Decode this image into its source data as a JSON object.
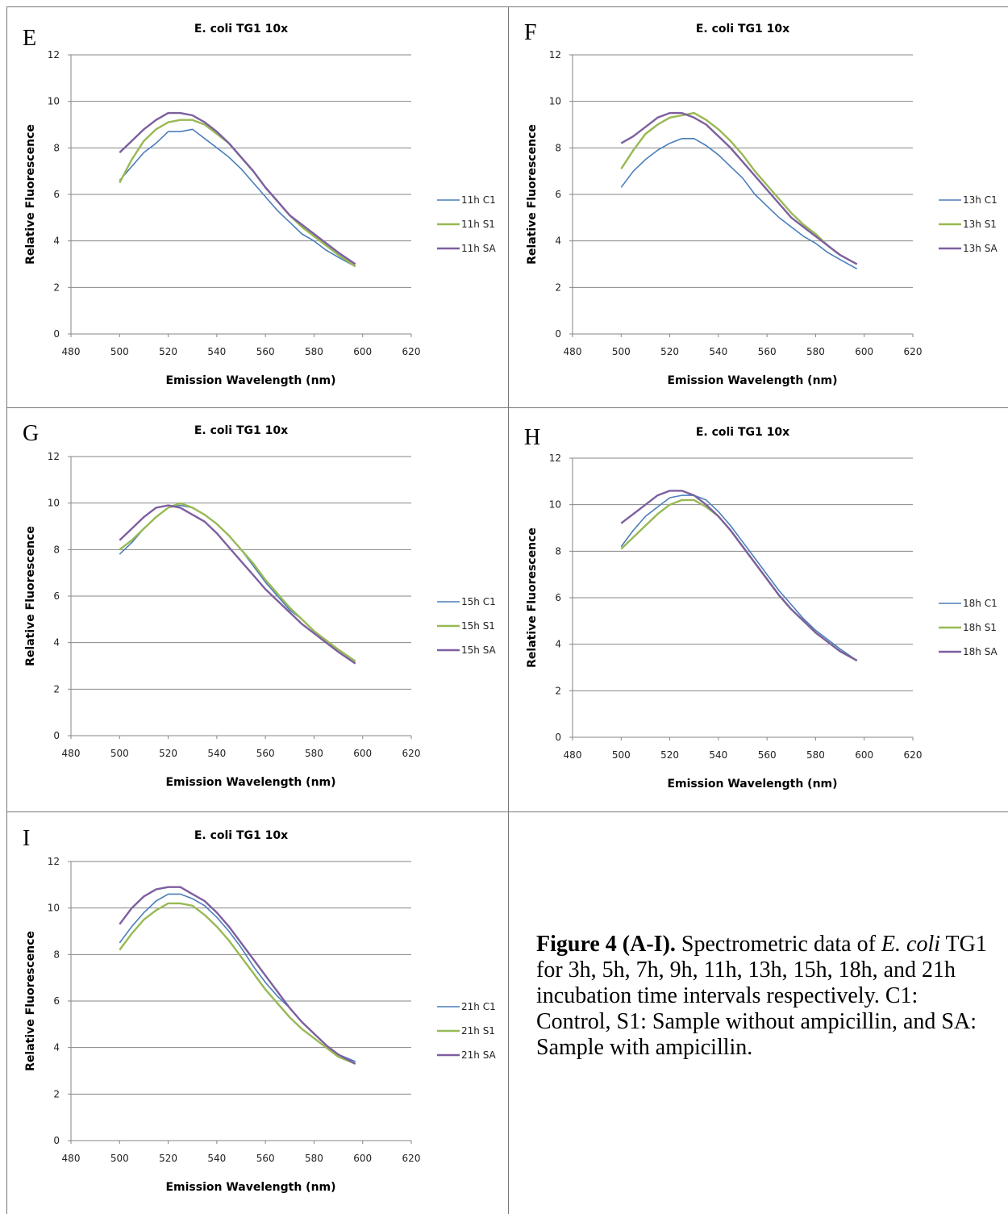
{
  "caption": {
    "bold": "Figure 4 (A-I).",
    "text_1": " Spectrometric data of ",
    "italic": "E. coli",
    "text_2": " TG1 for 3h, 5h, 7h, 9h, 11h, 13h, 15h, 18h, and 21h incubation time intervals respectively. C1: Control, S1: Sample without ampicillin, and SA: Sample with ampicillin."
  },
  "colors": {
    "C1": "#4a7ebb",
    "S1": "#98b954",
    "SA": "#7d5fa0",
    "grid": "#868686"
  },
  "chart_data": [
    {
      "panel": "E",
      "type": "line",
      "title": "E. coli TG1 10x",
      "xlabel": "Emission Wavelength (nm)",
      "ylabel": "Relative Fluorescence",
      "xlim": [
        480,
        620
      ],
      "xticks": [
        480,
        500,
        520,
        540,
        560,
        580,
        600,
        620
      ],
      "ylim": [
        0,
        12
      ],
      "yticks": [
        0,
        2,
        4,
        6,
        8,
        10,
        12
      ],
      "grid": "horizontal",
      "legend": "right",
      "x": [
        500,
        505,
        510,
        515,
        520,
        525,
        530,
        535,
        540,
        545,
        550,
        555,
        560,
        565,
        570,
        575,
        580,
        585,
        590,
        597
      ],
      "series": [
        {
          "name": "11h C1",
          "key": "C1",
          "values": [
            6.6,
            7.2,
            7.8,
            8.2,
            8.7,
            8.7,
            8.8,
            8.4,
            8.0,
            7.6,
            7.1,
            6.5,
            5.9,
            5.3,
            4.8,
            4.3,
            4.0,
            3.6,
            3.3,
            2.9
          ]
        },
        {
          "name": "11h S1",
          "key": "S1",
          "values": [
            6.5,
            7.5,
            8.3,
            8.8,
            9.1,
            9.2,
            9.2,
            9.0,
            8.6,
            8.2,
            7.6,
            7.0,
            6.3,
            5.7,
            5.1,
            4.6,
            4.2,
            3.8,
            3.4,
            2.9
          ]
        },
        {
          "name": "11h SA",
          "key": "SA",
          "values": [
            7.8,
            8.3,
            8.8,
            9.2,
            9.5,
            9.5,
            9.4,
            9.1,
            8.7,
            8.2,
            7.6,
            7.0,
            6.3,
            5.7,
            5.1,
            4.7,
            4.3,
            3.9,
            3.5,
            3.0
          ]
        }
      ]
    },
    {
      "panel": "F",
      "type": "line",
      "title": "E. coli TG1 10x",
      "xlabel": "Emission Wavelength (nm)",
      "ylabel": "Relative Fluorescence",
      "xlim": [
        480,
        620
      ],
      "xticks": [
        480,
        500,
        520,
        540,
        560,
        580,
        600,
        620
      ],
      "ylim": [
        0,
        12
      ],
      "yticks": [
        0,
        2,
        4,
        6,
        8,
        10,
        12
      ],
      "grid": "horizontal",
      "legend": "right",
      "x": [
        500,
        505,
        510,
        515,
        520,
        525,
        530,
        535,
        540,
        545,
        550,
        555,
        560,
        565,
        570,
        575,
        580,
        585,
        590,
        597
      ],
      "series": [
        {
          "name": "13h C1",
          "key": "C1",
          "values": [
            6.3,
            7.0,
            7.5,
            7.9,
            8.2,
            8.4,
            8.4,
            8.1,
            7.7,
            7.2,
            6.7,
            6.0,
            5.5,
            5.0,
            4.6,
            4.2,
            3.9,
            3.5,
            3.2,
            2.8
          ]
        },
        {
          "name": "13h S1",
          "key": "S1",
          "values": [
            7.1,
            7.9,
            8.6,
            9.0,
            9.3,
            9.4,
            9.5,
            9.2,
            8.8,
            8.3,
            7.7,
            7.0,
            6.4,
            5.8,
            5.2,
            4.7,
            4.3,
            3.8,
            3.4,
            3.0
          ]
        },
        {
          "name": "13h SA",
          "key": "SA",
          "values": [
            8.2,
            8.5,
            8.9,
            9.3,
            9.5,
            9.5,
            9.3,
            9.0,
            8.5,
            8.0,
            7.4,
            6.8,
            6.2,
            5.6,
            5.0,
            4.6,
            4.2,
            3.8,
            3.4,
            3.0
          ]
        }
      ]
    },
    {
      "panel": "G",
      "type": "line",
      "title": "E. coli TG1 10x",
      "xlabel": "Emission Wavelength (nm)",
      "ylabel": "Relative Fluorescence",
      "xlim": [
        480,
        620
      ],
      "xticks": [
        480,
        500,
        520,
        540,
        560,
        580,
        600,
        620
      ],
      "ylim": [
        0,
        12
      ],
      "yticks": [
        0,
        2,
        4,
        6,
        8,
        10,
        12
      ],
      "grid": "horizontal",
      "legend": "right",
      "x": [
        500,
        505,
        510,
        515,
        520,
        525,
        530,
        535,
        540,
        545,
        550,
        555,
        560,
        565,
        570,
        575,
        580,
        585,
        590,
        597
      ],
      "series": [
        {
          "name": "15h C1",
          "key": "C1",
          "values": [
            7.8,
            8.3,
            8.9,
            9.4,
            9.8,
            9.9,
            9.8,
            9.5,
            9.1,
            8.6,
            8.0,
            7.3,
            6.6,
            6.0,
            5.4,
            5.0,
            4.5,
            4.1,
            3.7,
            3.2
          ]
        },
        {
          "name": "15h S1",
          "key": "S1",
          "values": [
            8.0,
            8.4,
            8.9,
            9.4,
            9.8,
            10.0,
            9.8,
            9.5,
            9.1,
            8.6,
            8.0,
            7.4,
            6.7,
            6.1,
            5.5,
            5.0,
            4.5,
            4.1,
            3.7,
            3.2
          ]
        },
        {
          "name": "15h SA",
          "key": "SA",
          "values": [
            8.4,
            8.9,
            9.4,
            9.8,
            9.9,
            9.8,
            9.5,
            9.2,
            8.7,
            8.1,
            7.5,
            6.9,
            6.3,
            5.8,
            5.3,
            4.8,
            4.4,
            4.0,
            3.6,
            3.1
          ]
        }
      ]
    },
    {
      "panel": "H",
      "type": "line",
      "title": "E. coli TG1 10x",
      "xlabel": "Emission Wavelength (nm)",
      "ylabel": "Relative Fluorescence",
      "xlim": [
        480,
        620
      ],
      "xticks": [
        480,
        500,
        520,
        540,
        560,
        580,
        600,
        620
      ],
      "ylim": [
        0,
        12
      ],
      "yticks": [
        0,
        2,
        4,
        6,
        8,
        10,
        12
      ],
      "grid": "horizontal",
      "legend": "right",
      "x": [
        500,
        505,
        510,
        515,
        520,
        525,
        530,
        535,
        540,
        545,
        550,
        555,
        560,
        565,
        570,
        575,
        580,
        585,
        590,
        597
      ],
      "series": [
        {
          "name": "18h C1",
          "key": "C1",
          "values": [
            8.2,
            8.9,
            9.5,
            9.9,
            10.3,
            10.4,
            10.4,
            10.2,
            9.7,
            9.1,
            8.4,
            7.7,
            7.0,
            6.3,
            5.7,
            5.1,
            4.6,
            4.2,
            3.8,
            3.3
          ]
        },
        {
          "name": "18h S1",
          "key": "S1",
          "values": [
            8.1,
            8.6,
            9.1,
            9.6,
            10.0,
            10.2,
            10.2,
            9.9,
            9.5,
            8.9,
            8.2,
            7.5,
            6.8,
            6.1,
            5.5,
            5.0,
            4.5,
            4.1,
            3.7,
            3.3
          ]
        },
        {
          "name": "18h SA",
          "key": "SA",
          "values": [
            9.2,
            9.6,
            10.0,
            10.4,
            10.6,
            10.6,
            10.4,
            10.0,
            9.5,
            8.9,
            8.2,
            7.5,
            6.8,
            6.1,
            5.5,
            5.0,
            4.5,
            4.1,
            3.7,
            3.3
          ]
        }
      ]
    },
    {
      "panel": "I",
      "type": "line",
      "title": "E. coli TG1 10x",
      "xlabel": "Emission Wavelength (nm)",
      "ylabel": "Relative Fluorescence",
      "xlim": [
        480,
        620
      ],
      "xticks": [
        480,
        500,
        520,
        540,
        560,
        580,
        600,
        620
      ],
      "ylim": [
        0,
        12
      ],
      "yticks": [
        0,
        2,
        4,
        6,
        8,
        10,
        12
      ],
      "grid": "horizontal",
      "legend": "right",
      "x": [
        500,
        505,
        510,
        515,
        520,
        525,
        530,
        535,
        540,
        545,
        550,
        555,
        560,
        565,
        570,
        575,
        580,
        585,
        590,
        597
      ],
      "series": [
        {
          "name": "21h C1",
          "key": "C1",
          "values": [
            8.5,
            9.2,
            9.8,
            10.3,
            10.6,
            10.6,
            10.4,
            10.1,
            9.6,
            9.0,
            8.3,
            7.5,
            6.8,
            6.2,
            5.7,
            5.1,
            4.6,
            4.1,
            3.7,
            3.4
          ]
        },
        {
          "name": "21h S1",
          "key": "S1",
          "values": [
            8.2,
            8.9,
            9.5,
            9.9,
            10.2,
            10.2,
            10.1,
            9.7,
            9.2,
            8.6,
            7.9,
            7.2,
            6.5,
            5.9,
            5.3,
            4.8,
            4.4,
            4.0,
            3.6,
            3.3
          ]
        },
        {
          "name": "21h SA",
          "key": "SA",
          "values": [
            9.3,
            10.0,
            10.5,
            10.8,
            10.9,
            10.9,
            10.6,
            10.3,
            9.8,
            9.2,
            8.5,
            7.8,
            7.1,
            6.4,
            5.7,
            5.1,
            4.6,
            4.1,
            3.7,
            3.3
          ]
        }
      ]
    }
  ]
}
